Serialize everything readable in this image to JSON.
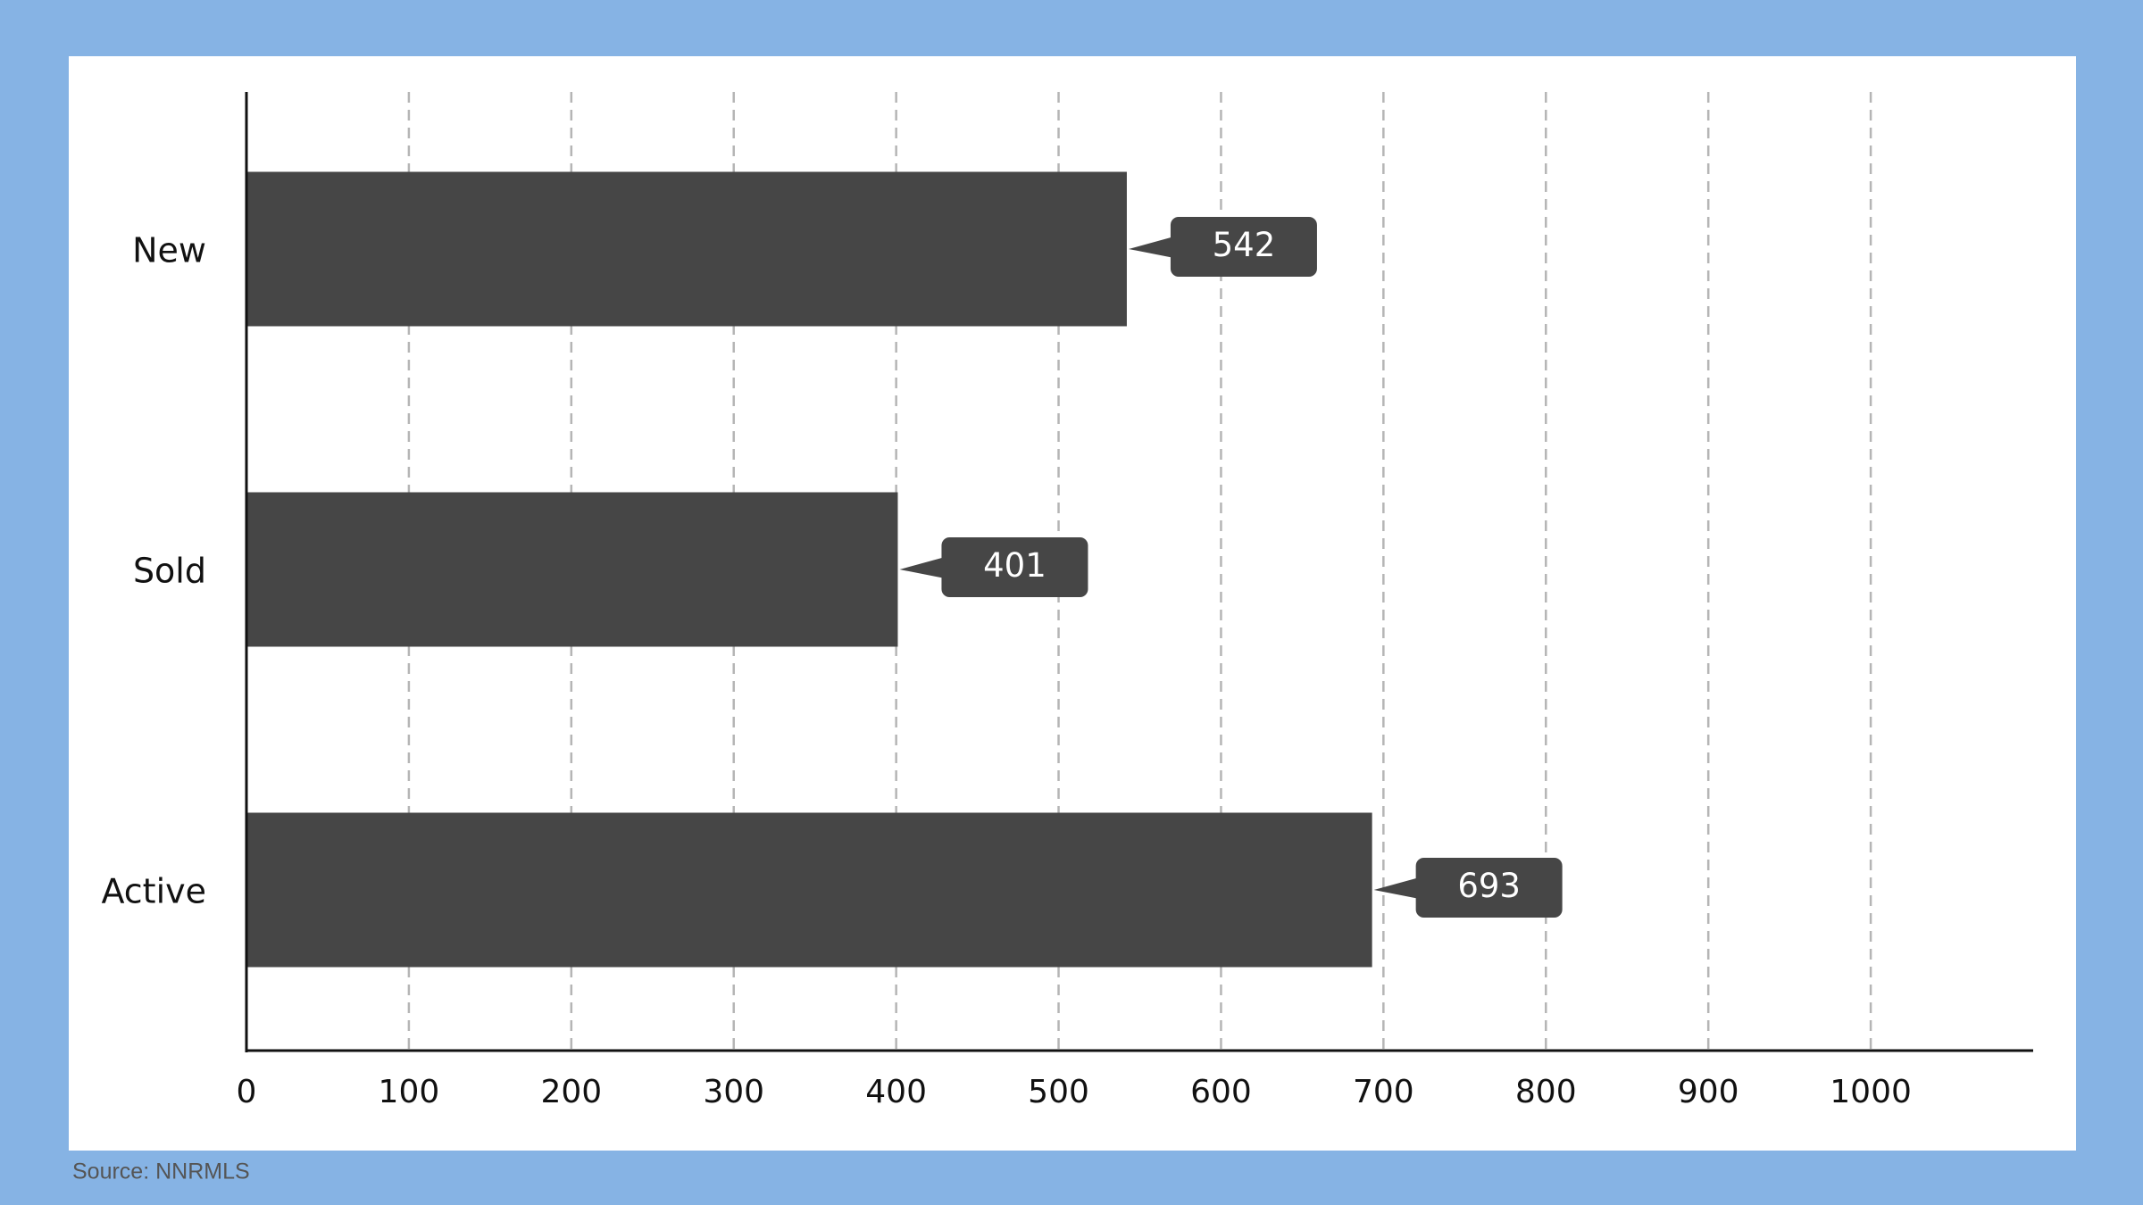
{
  "chart_data": {
    "type": "bar",
    "orientation": "horizontal",
    "categories": [
      "New",
      "Sold",
      "Active"
    ],
    "values": [
      542,
      401,
      693
    ],
    "color": "#464646",
    "xlim": [
      0,
      1100
    ],
    "xticks": [
      0,
      100,
      200,
      300,
      400,
      500,
      600,
      700,
      800,
      900,
      1000
    ],
    "grid": true,
    "source": "Source: NNRMLS"
  }
}
